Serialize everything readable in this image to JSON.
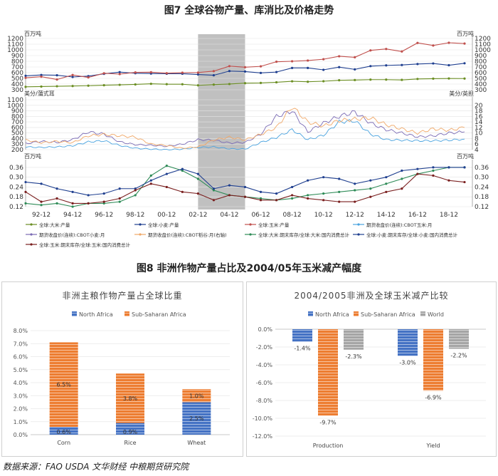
{
  "figure7_title": "图7 全球谷物产量、库消比及价格走势",
  "figure8_title": "图8 非洲作物产量占比及2004/05年玉米减产幅度",
  "source": "数据来源：FAO USDA 文华财经 中粮期货研究院",
  "colors": {
    "maize_prod": "#c0504d",
    "wheat_prod": "#1f3f8f",
    "rice_prod": "#6b8e23",
    "corn_price": "#4aa3df",
    "wheat_price": "#7b6bb5",
    "rice_price": "#f0a868",
    "maize_su": "#2e8b57",
    "wheat_su": "#1f3f8f",
    "rice_su": "#7a1f1f",
    "north_africa": "#4472c4",
    "ssa": "#ed7d31",
    "world": "#a5a5a5",
    "shade": "#8c8c8c"
  },
  "chart_data": [
    {
      "type": "line",
      "id": "fig7-production",
      "y_unit_left": "百万吨",
      "y_unit_right": "百万吨",
      "ylim": [
        300,
        1200
      ],
      "yticks": [
        300,
        400,
        500,
        600,
        700,
        800,
        900,
        1000,
        1100,
        1200
      ],
      "x_years": [
        1991,
        1992,
        1993,
        1994,
        1995,
        1996,
        1997,
        1998,
        1999,
        2000,
        2001,
        2002,
        2003,
        2004,
        2005,
        2006,
        2007,
        2008,
        2009,
        2010,
        2011,
        2012,
        2013,
        2014,
        2015,
        2016,
        2017,
        2018,
        2019
      ],
      "series": [
        {
          "name": "全球:大米:产量",
          "color_key": "rice_prod",
          "values": [
            352,
            357,
            362,
            366,
            372,
            380,
            387,
            394,
            405,
            398,
            397,
            378,
            391,
            401,
            416,
            420,
            432,
            449,
            441,
            450,
            467,
            471,
            478,
            478,
            473,
            490,
            495,
            498,
            497
          ]
        },
        {
          "name": "全球:小麦:产量",
          "color_key": "wheat_prod",
          "values": [
            545,
            560,
            555,
            525,
            540,
            580,
            610,
            590,
            585,
            582,
            582,
            568,
            555,
            628,
            620,
            596,
            611,
            683,
            683,
            650,
            697,
            658,
            715,
            728,
            735,
            752,
            762,
            731,
            765
          ]
        },
        {
          "name": "全球:玉米:产量",
          "color_key": "maize_prod",
          "values": [
            510,
            530,
            480,
            560,
            517,
            590,
            575,
            605,
            608,
            591,
            600,
            602,
            627,
            715,
            696,
            711,
            792,
            800,
            813,
            836,
            888,
            870,
            991,
            1016,
            972,
            1122,
            1077,
            1125,
            1111
          ]
        }
      ]
    },
    {
      "type": "line",
      "id": "fig7-prices",
      "y_unit_left": "美分/蒲式耳",
      "y_unit_right": "美分/英担",
      "ylim_left": [
        200,
        1100
      ],
      "ylim_right": [
        4,
        22
      ],
      "yticks_left": [
        200,
        300,
        400,
        500,
        600,
        700,
        800,
        900,
        1000,
        1100
      ],
      "yticks_right": [
        4,
        6,
        8,
        10,
        12,
        14,
        16,
        18,
        20
      ],
      "x_years": [
        1991,
        1992,
        1993,
        1994,
        1995,
        1996,
        1997,
        1998,
        1999,
        2000,
        2001,
        2002,
        2003,
        2004,
        2005,
        2006,
        2007,
        2008,
        2009,
        2010,
        2011,
        2012,
        2013,
        2014,
        2015,
        2016,
        2017,
        2018,
        2019
      ],
      "series": [
        {
          "name": "期货收盘价(连续):CBOT玉米:月",
          "color_key": "corn_price",
          "axis": "left",
          "values": [
            250,
            240,
            250,
            270,
            340,
            360,
            275,
            225,
            210,
            200,
            210,
            240,
            250,
            215,
            210,
            330,
            420,
            560,
            380,
            460,
            700,
            720,
            480,
            380,
            370,
            360,
            360,
            370,
            390
          ]
        },
        {
          "name": "期货收盘价(连续):CBOT小麦:月",
          "color_key": "wheat_price",
          "axis": "left",
          "values": [
            310,
            350,
            330,
            380,
            520,
            480,
            340,
            290,
            280,
            260,
            300,
            380,
            370,
            320,
            330,
            480,
            800,
            900,
            520,
            680,
            800,
            880,
            680,
            560,
            500,
            430,
            450,
            500,
            520
          ]
        },
        {
          "name": "期货收盘价(连续):CBOT稻谷:月(右轴)",
          "color_key": "rice_price",
          "axis": "right",
          "values": [
            7.5,
            6.5,
            7.0,
            6.5,
            9.0,
            9.5,
            9.0,
            8.5,
            6.0,
            5.5,
            4.5,
            5.0,
            7.5,
            8.5,
            7.5,
            9.5,
            12.0,
            19.5,
            14.0,
            12.5,
            14.5,
            15.0,
            15.5,
            13.0,
            11.5,
            10.0,
            11.5,
            11.0,
            12.0
          ]
        }
      ]
    },
    {
      "type": "line",
      "id": "fig7-stocks-to-use",
      "y_unit_left": "百万吨",
      "y_unit_right": "百万吨",
      "ylim": [
        0.12,
        0.39
      ],
      "yticks": [
        0.12,
        0.18,
        0.24,
        0.3,
        0.36
      ],
      "x_years": [
        1991,
        1992,
        1993,
        1994,
        1995,
        1996,
        1997,
        1998,
        1999,
        2000,
        2001,
        2002,
        2003,
        2004,
        2005,
        2006,
        2007,
        2008,
        2009,
        2010,
        2011,
        2012,
        2013,
        2014,
        2015,
        2016,
        2017,
        2018,
        2019
      ],
      "xlabels": [
        "92-12",
        "94-12",
        "96-12",
        "98-12",
        "00-12",
        "02-12",
        "04-12",
        "06-12",
        "08-12",
        "10-12",
        "12-12",
        "14-12",
        "16-12",
        "18-12"
      ],
      "shade_range": [
        "2002",
        "2005"
      ],
      "series": [
        {
          "name": "全球:大米:期末库存/全球:大米:国内消费总计",
          "color_key": "maize_su",
          "values": [
            0.14,
            0.13,
            0.14,
            0.12,
            0.14,
            0.14,
            0.15,
            0.19,
            0.31,
            0.37,
            0.34,
            0.29,
            0.22,
            0.19,
            0.18,
            0.17,
            0.16,
            0.17,
            0.19,
            0.2,
            0.21,
            0.22,
            0.23,
            0.26,
            0.29,
            0.32,
            0.34,
            0.36,
            0.36
          ]
        },
        {
          "name": "全球:小麦:期末库存/全球:小麦:国内消费总计",
          "color_key": "wheat_su",
          "values": [
            0.27,
            0.26,
            0.23,
            0.21,
            0.19,
            0.2,
            0.23,
            0.23,
            0.28,
            0.32,
            0.35,
            0.32,
            0.23,
            0.25,
            0.24,
            0.21,
            0.2,
            0.24,
            0.28,
            0.3,
            0.29,
            0.26,
            0.28,
            0.3,
            0.34,
            0.35,
            0.36,
            0.36,
            0.36
          ]
        },
        {
          "name": "全球:玉米:期末库存/全球:玉米:国内消费总计",
          "color_key": "rice_su",
          "values": [
            0.21,
            0.15,
            0.17,
            0.14,
            0.14,
            0.15,
            0.17,
            0.22,
            0.26,
            0.24,
            0.21,
            0.2,
            0.16,
            0.19,
            0.18,
            0.16,
            0.16,
            0.19,
            0.17,
            0.16,
            0.15,
            0.15,
            0.18,
            0.21,
            0.23,
            0.32,
            0.31,
            0.28,
            0.27
          ]
        }
      ]
    },
    {
      "type": "bar",
      "id": "fig8-left",
      "title": "非洲主粮作物产量占全球比重",
      "categories": [
        "Corn",
        "Rice",
        "Wheat"
      ],
      "stacked": true,
      "ylim": [
        0,
        8
      ],
      "yticks": [
        "0.0%",
        "1.0%",
        "2.0%",
        "3.0%",
        "4.0%",
        "5.0%",
        "6.0%",
        "7.0%",
        "8.0%"
      ],
      "series": [
        {
          "name": "North Africa",
          "color_key": "north_africa",
          "values": [
            0.6,
            0.9,
            2.5
          ],
          "labels": [
            "0.6%",
            "0.9%",
            "2.5%"
          ]
        },
        {
          "name": "Sub-Saharan Africa",
          "color_key": "ssa",
          "values": [
            6.5,
            3.8,
            1.0
          ],
          "labels": [
            "6.5%",
            "3.8%",
            "1.0%"
          ]
        }
      ]
    },
    {
      "type": "bar",
      "id": "fig8-right",
      "title": "2004/2005非洲及全球玉米减产比较",
      "categories": [
        "Production",
        "Yield"
      ],
      "ylim": [
        -12,
        0
      ],
      "yticks": [
        "0.0%",
        "-2.0%",
        "-4.0%",
        "-6.0%",
        "-8.0%",
        "-10.0%",
        "-12.0%"
      ],
      "series": [
        {
          "name": "North Africa",
          "color_key": "north_africa",
          "values": [
            -1.4,
            -3.0
          ],
          "labels": [
            "-1.4%",
            "-3.0%"
          ]
        },
        {
          "name": "Sub-Saharan Africa",
          "color_key": "ssa",
          "values": [
            -9.7,
            -6.9
          ],
          "labels": [
            "-9.7%",
            "-6.9%"
          ]
        },
        {
          "name": "World",
          "color_key": "world",
          "values": [
            -2.3,
            -2.2
          ],
          "labels": [
            "-2.3%",
            "-2.2%"
          ]
        }
      ]
    }
  ]
}
